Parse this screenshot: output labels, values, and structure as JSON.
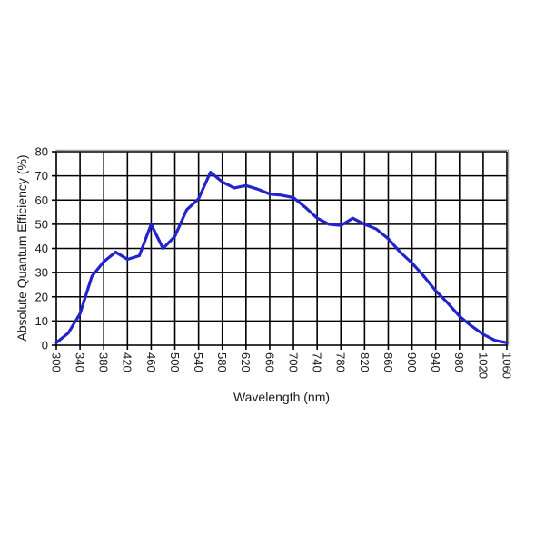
{
  "chart_data": {
    "type": "line",
    "title": "",
    "xlabel": "Wavelength (nm)",
    "ylabel": "Absolute Quantum Efficiency (%)",
    "series": [
      {
        "name": "Absolute Quantum Efficiency",
        "x": [
          300,
          320,
          340,
          360,
          380,
          400,
          420,
          440,
          460,
          480,
          500,
          520,
          540,
          560,
          580,
          600,
          620,
          640,
          660,
          680,
          700,
          720,
          740,
          760,
          780,
          800,
          820,
          840,
          860,
          880,
          900,
          920,
          940,
          960,
          980,
          1000,
          1020,
          1040,
          1060
        ],
        "y": [
          1,
          5,
          13,
          28.5,
          34.5,
          38.5,
          35.5,
          37,
          50,
          40,
          45,
          56,
          60.5,
          71.5,
          67.5,
          65,
          66,
          64.5,
          62.5,
          62,
          61,
          57,
          52.5,
          50,
          49.5,
          52.5,
          50,
          48,
          44,
          38.5,
          34,
          28.5,
          22.5,
          17.5,
          12,
          8,
          4.5,
          2,
          1
        ]
      }
    ],
    "xlim": [
      300,
      1060
    ],
    "ylim": [
      0,
      80
    ],
    "x_ticks": [
      300,
      340,
      380,
      420,
      460,
      500,
      540,
      580,
      620,
      660,
      700,
      740,
      780,
      820,
      860,
      900,
      940,
      980,
      1020,
      1060
    ],
    "y_ticks": [
      0,
      10,
      20,
      30,
      40,
      50,
      60,
      70,
      80
    ],
    "x_tick_rotation_deg": 90,
    "grid": "on",
    "legend": "none",
    "line_color": "#2323cd",
    "grid_color": "#000000",
    "frame_color": "#a3a3a3",
    "text_color": "#1a1a1a"
  }
}
